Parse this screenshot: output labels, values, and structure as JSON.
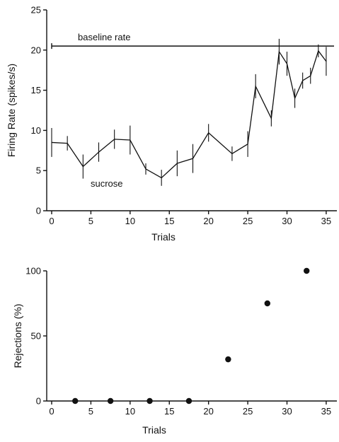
{
  "chart_data": [
    {
      "type": "line",
      "title": "",
      "xlabel": "Trials",
      "ylabel": "Firing  Rate (spikes/s)",
      "xlim": [
        0,
        36
      ],
      "ylim": [
        0,
        25
      ],
      "xticks": [
        0,
        5,
        10,
        15,
        20,
        25,
        30,
        35
      ],
      "yticks": [
        0,
        5,
        10,
        15,
        20,
        25
      ],
      "grid": false,
      "baseline": {
        "label": "baseline  rate",
        "value": 20.5
      },
      "series": [
        {
          "name": "sucrose",
          "x": [
            0,
            2,
            4,
            6,
            8,
            10,
            12,
            14,
            16,
            18,
            20,
            23,
            25,
            26,
            28,
            29,
            30,
            31,
            32,
            33,
            34,
            35
          ],
          "y": [
            8.5,
            8.4,
            5.5,
            7.3,
            8.9,
            8.8,
            5.2,
            4.1,
            5.9,
            6.5,
            9.7,
            7.1,
            8.3,
            15.5,
            11.5,
            19.8,
            18.3,
            14,
            16.2,
            16.8,
            19.9,
            18.6
          ],
          "err": [
            1.8,
            0.9,
            1.5,
            1.2,
            1.2,
            1.8,
            0.7,
            1,
            1.6,
            1.8,
            1.1,
            0.9,
            1.6,
            1.5,
            1,
            1.6,
            1.5,
            1.2,
            1,
            1,
            0.8,
            1.8
          ]
        }
      ]
    },
    {
      "type": "scatter",
      "title": "",
      "xlabel": "Trials",
      "ylabel": "Rejections   (%)",
      "xlim": [
        0,
        36
      ],
      "ylim": [
        0,
        100
      ],
      "xticks": [
        0,
        5,
        10,
        15,
        20,
        25,
        30,
        35
      ],
      "yticks": [
        0,
        50,
        100
      ],
      "grid": false,
      "series": [
        {
          "x": [
            3,
            7.5,
            12.5,
            17.5,
            22.5,
            27.5,
            32.5
          ],
          "y": [
            0,
            0,
            0,
            0,
            32,
            75,
            100
          ]
        }
      ]
    }
  ]
}
